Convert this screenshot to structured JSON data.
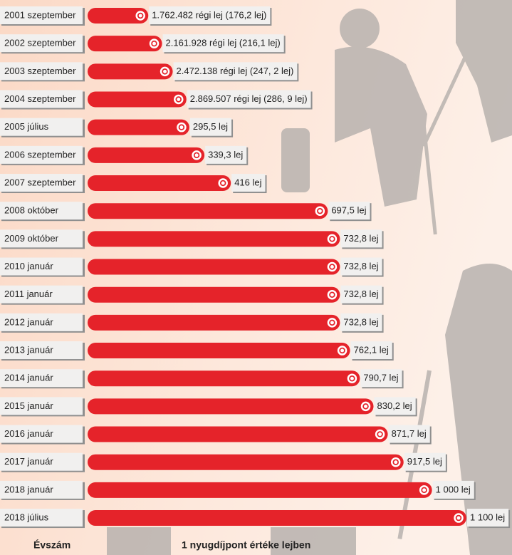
{
  "chart_data": {
    "type": "bar",
    "orientation": "horizontal",
    "ylabel": "Évszám",
    "xlabel": "1 nyugdíjpont értéke lejben",
    "color": "#e5232a",
    "categories": [
      "2001 szeptember",
      "2002 szeptember",
      "2003 szeptember",
      "2004 szeptember",
      "2005 július",
      "2006 szeptember",
      "2007 szeptember",
      "2008 október",
      "2009 október",
      "2010 január",
      "2011 január",
      "2012 január",
      "2013 január",
      "2014 január",
      "2015 január",
      "2016 január",
      "2017 január",
      "2018 január",
      "2018 július"
    ],
    "values": [
      176.2,
      216.1,
      247.2,
      286.9,
      295.5,
      339.3,
      416,
      697.5,
      732.8,
      732.8,
      732.8,
      732.8,
      762.1,
      790.7,
      830.2,
      871.7,
      917.5,
      1000,
      1100
    ],
    "value_labels": [
      "1.762.482 régi lej (176,2 lej)",
      "2.161.928 régi lej (216,1 lej)",
      "2.472.138 régi lej (247, 2 lej)",
      "2.869.507 régi lej (286, 9 lej)",
      "295,5 lej",
      "339,3 lej",
      "416 lej",
      "697,5 lej",
      "732,8 lej",
      "732,8 lej",
      "732,8 lej",
      "732,8 lej",
      "762,1 lej",
      "790,7 lej",
      "830,2 lej",
      "871,7 lej",
      "917,5 lej",
      "1 000 lej",
      "1 100 lej"
    ]
  }
}
